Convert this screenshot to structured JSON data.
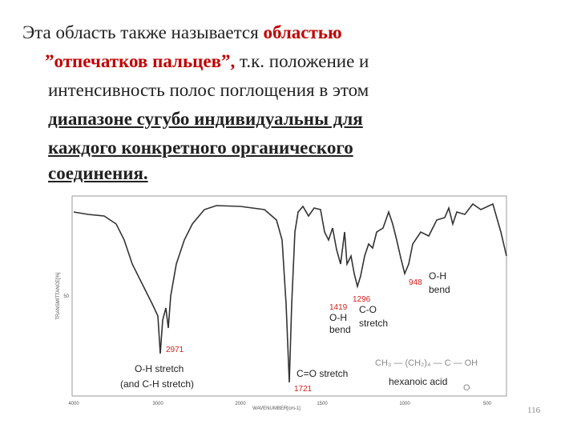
{
  "text": {
    "lines": [
      {
        "runs": [
          {
            "text": "Эта область также называется ",
            "style": "plain"
          },
          {
            "text": "областью",
            "style": "red-bold"
          }
        ]
      },
      {
        "runs": [
          {
            "text": "”отпечатков пальцев”,",
            "style": "red-bold"
          },
          {
            "text": " т.к. положение и",
            "style": "plain"
          }
        ]
      },
      {
        "runs": [
          {
            "text": "интенсивность полос поглощения в этом",
            "style": "plain"
          }
        ]
      },
      {
        "runs": [
          {
            "text": "диапазоне сугубо индивидуальны для",
            "style": "bold-underline"
          }
        ]
      },
      {
        "runs": [
          {
            "text": "каждого конкретного органического",
            "style": "bold-underline"
          }
        ]
      },
      {
        "runs": [
          {
            "text": "соединения.",
            "style": "bold-underline"
          }
        ]
      }
    ]
  },
  "spectrum": {
    "y_axis_label": "TRANSMITTANCE[%]",
    "x_axis_label": "WAVENUMBER[cm-1]",
    "x_ticks": [
      "4000",
      "3000",
      "2000",
      "1500",
      "1000",
      "500"
    ],
    "y_ticks": [
      "50"
    ],
    "peak_labels": [
      "2971",
      "1721",
      "1419",
      "1296",
      "948"
    ],
    "notes": [
      "O-H stretch",
      "(and C-H stretch)",
      "C=O stretch",
      "O-H",
      "bend",
      "C-O",
      "stretch",
      "O-H",
      "bend"
    ],
    "formula": "CH₃ — (CH₂)₄ — C — OH",
    "formula_oxygen": "O",
    "compound": "hexanoic acid"
  },
  "page_number": "116"
}
